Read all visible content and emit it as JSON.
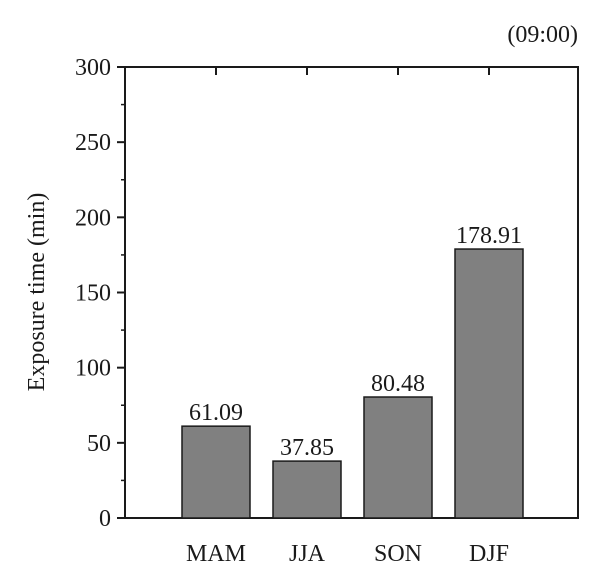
{
  "chart_data": {
    "type": "bar",
    "categories": [
      "MAM",
      "JJA",
      "SON",
      "DJF"
    ],
    "values": [
      61.09,
      37.85,
      80.48,
      178.91
    ],
    "value_labels": [
      "61.09",
      "37.85",
      "80.48",
      "178.91"
    ],
    "ylabel": "Exposure time (min)",
    "xlabel": "",
    "annotation": "(09:00)",
    "ylim": [
      0,
      300
    ],
    "yticks": [
      0,
      50,
      100,
      150,
      200,
      250,
      300
    ],
    "grid": false,
    "legend": "none",
    "colors": {
      "bar_fill": "#808080",
      "bar_stroke": "#1a1a1a",
      "axis": "#1a1a1a"
    }
  }
}
